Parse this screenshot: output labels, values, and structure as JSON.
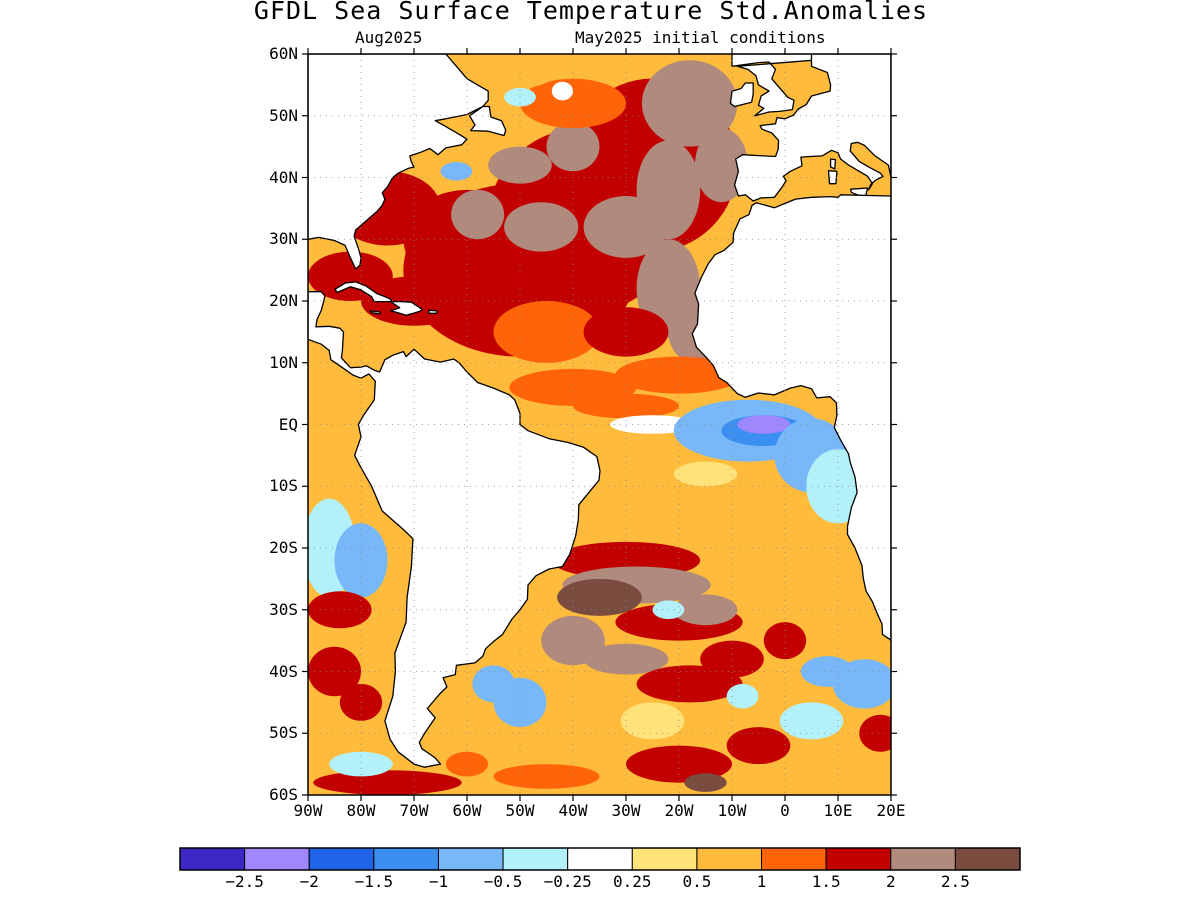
{
  "title": "GFDL Sea Surface Temperature Std.Anomalies",
  "subtitle_left": "Aug2025",
  "subtitle_right": "May2025 initial conditions",
  "map": {
    "lon_range": [
      -90,
      20
    ],
    "lat_range": [
      -60,
      60
    ],
    "lat_labels": [
      "60N",
      "50N",
      "40N",
      "30N",
      "20N",
      "10N",
      "EQ",
      "10S",
      "20S",
      "30S",
      "40S",
      "50S",
      "60S"
    ],
    "lon_labels": [
      "90W",
      "80W",
      "70W",
      "60W",
      "50W",
      "40W",
      "30W",
      "20W",
      "10W",
      "0",
      "10E",
      "20E"
    ],
    "land_color": "#ffffff",
    "coastline_color": "#000000",
    "grid": "dotted"
  },
  "colorbar": {
    "colors": [
      "#3b28c4",
      "#9f87ff",
      "#1f63e6",
      "#3a8ff0",
      "#78b8f8",
      "#b2f0fa",
      "#ffffff",
      "#ffe27a",
      "#ffbb3b",
      "#ff6408",
      "#c20000",
      "#b18a7e",
      "#7a4c40"
    ],
    "labels": [
      "-2.5",
      "-2",
      "-1.5",
      "-1",
      "-0.5",
      "-0.25",
      "0.25",
      "0.5",
      "1",
      "1.5",
      "2",
      "2.5"
    ]
  },
  "chart_data": {
    "type": "heatmap",
    "title": "GFDL Sea Surface Temperature Std.Anomalies",
    "xlim": [
      -90,
      20
    ],
    "ylim": [
      -60,
      60
    ],
    "levels": [
      -2.5,
      -2,
      -1.5,
      -1,
      -0.5,
      -0.25,
      0.25,
      0.5,
      1,
      1.5,
      2,
      2.5
    ],
    "regions": [
      {
        "lon": -55,
        "lat": 30,
        "value": 2.2
      },
      {
        "lon": -40,
        "lat": 35,
        "value": 2.3
      },
      {
        "lon": -20,
        "lat": 50,
        "value": 2.5
      },
      {
        "lon": -45,
        "lat": 12,
        "value": 1.6
      },
      {
        "lon": -10,
        "lat": -2,
        "value": -1.6
      },
      {
        "lon": -30,
        "lat": -26,
        "value": 2.4
      },
      {
        "lon": -20,
        "lat": -35,
        "value": 1.5
      },
      {
        "lon": 12,
        "lat": -42,
        "value": -1.0
      },
      {
        "lon": -85,
        "lat": -20,
        "value": -0.3
      },
      {
        "lon": -55,
        "lat": -47,
        "value": -0.7
      }
    ]
  }
}
